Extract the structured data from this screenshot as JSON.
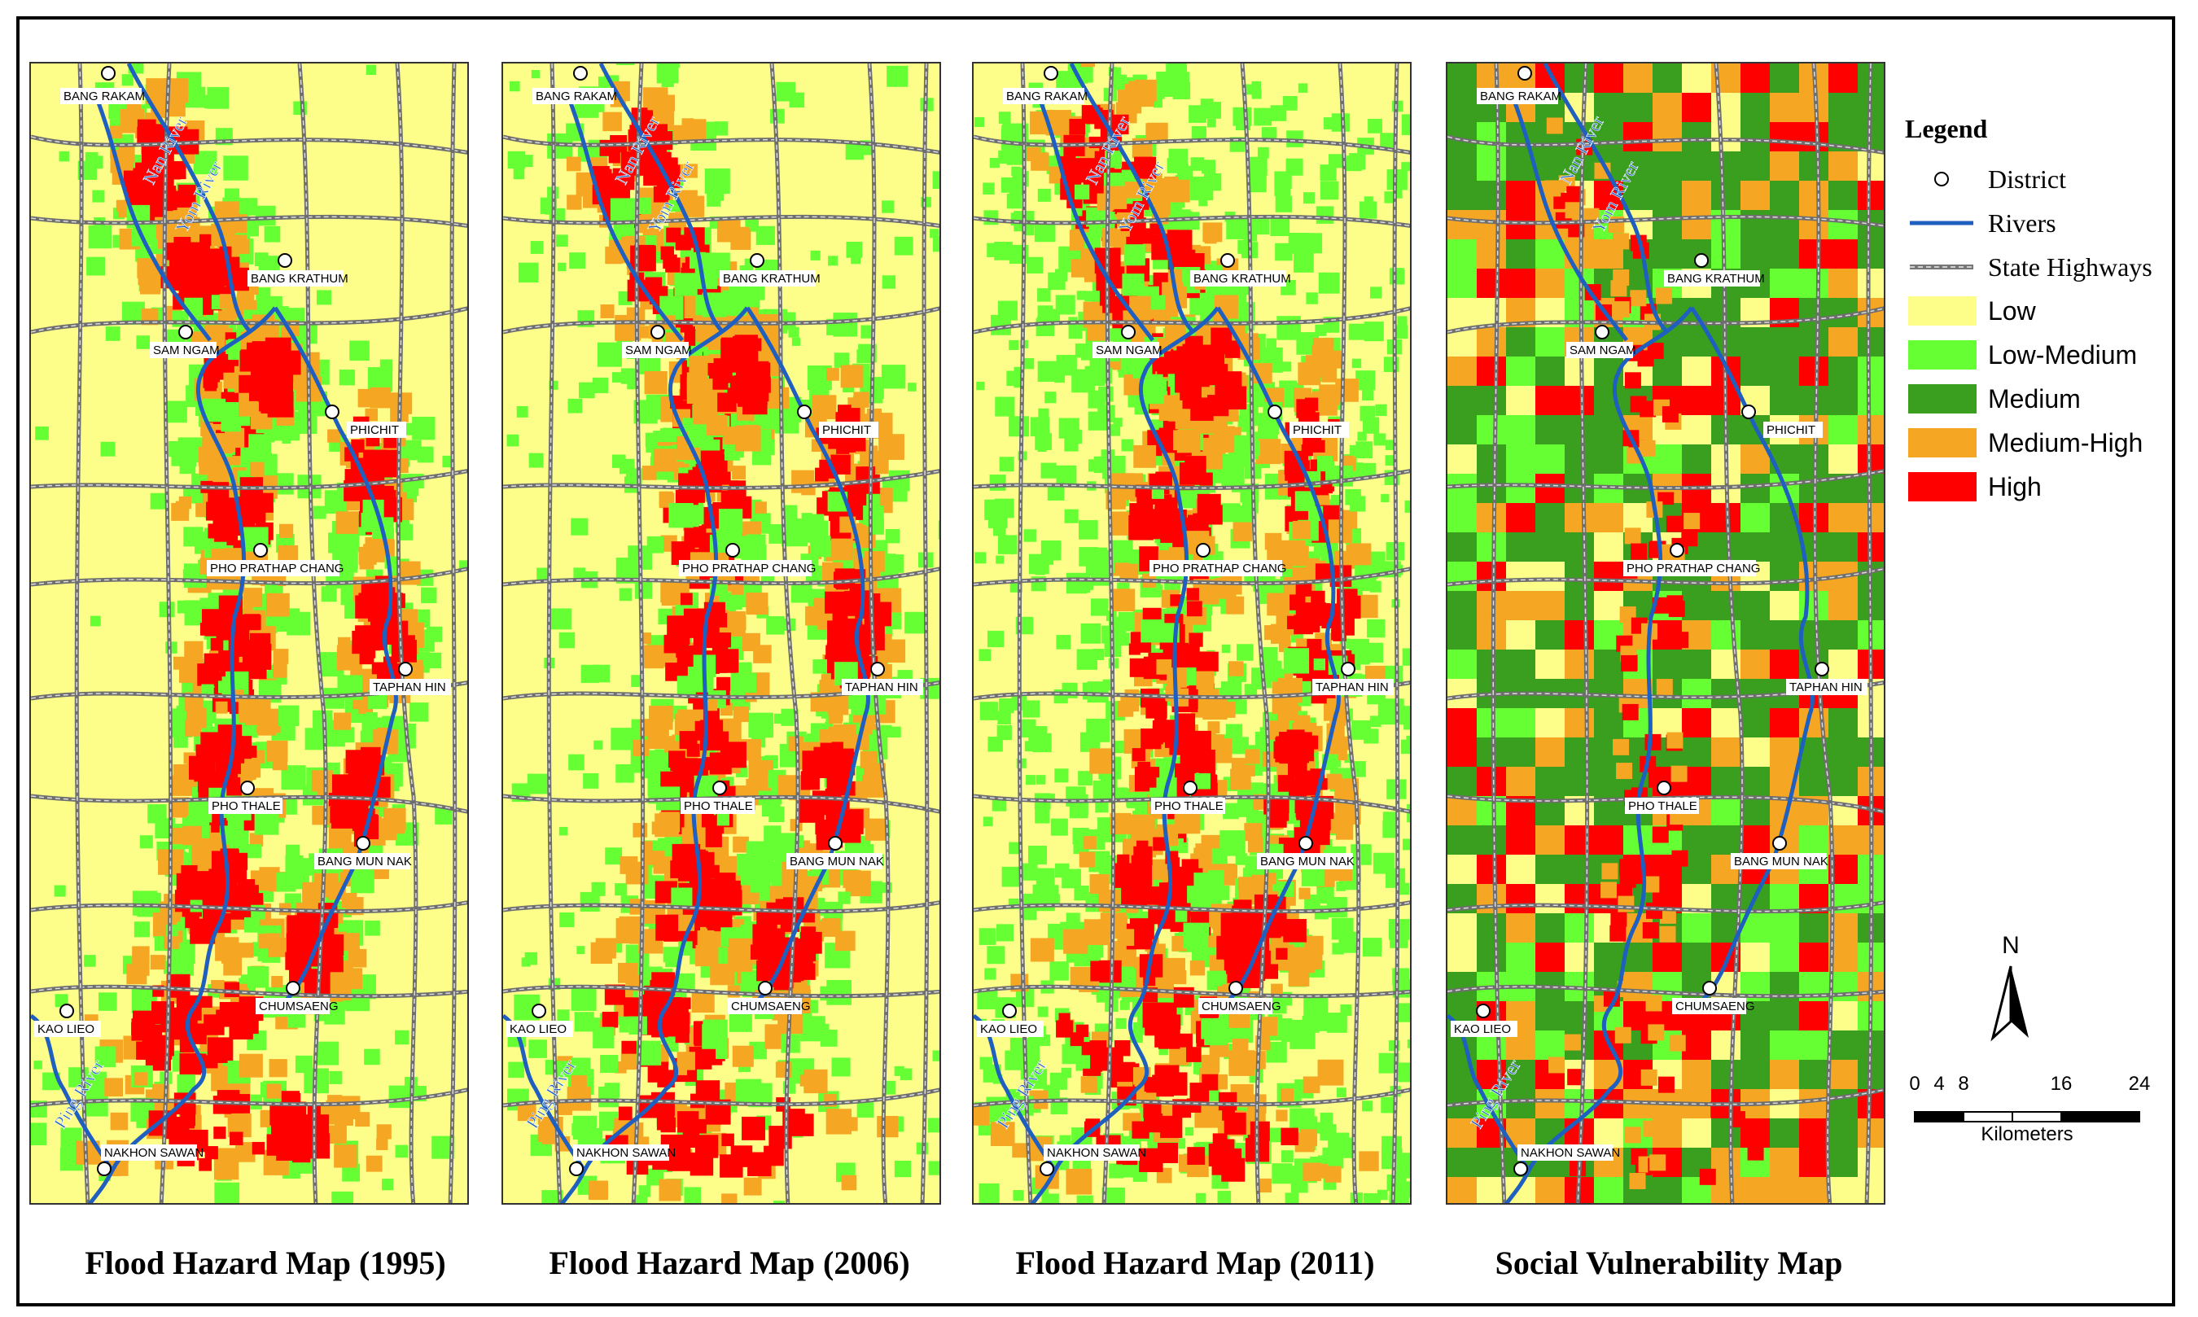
{
  "maps": [
    {
      "caption": "Flood Hazard Map (1995)",
      "type": "flood-1995"
    },
    {
      "caption": "Flood Hazard Map (2006)",
      "type": "flood-2006"
    },
    {
      "caption": "Flood Hazard Map (2011)",
      "type": "flood-2011"
    },
    {
      "caption": "Social Vulnerability Map",
      "type": "vulnerability"
    }
  ],
  "districts": [
    {
      "name": "BANG RAKAM"
    },
    {
      "name": "BANG KRATHUM"
    },
    {
      "name": "SAM NGAM"
    },
    {
      "name": "PHICHIT"
    },
    {
      "name": "PHO PRATHAP CHANG"
    },
    {
      "name": "TAPHAN HIN"
    },
    {
      "name": "PHO THALE"
    },
    {
      "name": "BANG MUN NAK"
    },
    {
      "name": "CHUMSAENG"
    },
    {
      "name": "KAO LIEO"
    },
    {
      "name": "NAKHON SAWAN"
    }
  ],
  "rivers": [
    "Nan River",
    "Yom River",
    "Ping River"
  ],
  "legend": {
    "title": "Legend",
    "items": [
      {
        "label": "District",
        "symbol": "district-circle"
      },
      {
        "label": "Rivers",
        "symbol": "river-line",
        "color": "#1f5fbf"
      },
      {
        "label": "State Highways",
        "symbol": "highway-line",
        "color": "#777777"
      },
      {
        "label": "Low",
        "symbol": "swatch",
        "color": "#fdfd8a"
      },
      {
        "label": "Low-Medium",
        "symbol": "swatch",
        "color": "#66ff33"
      },
      {
        "label": "Medium",
        "symbol": "swatch",
        "color": "#3a9e1e"
      },
      {
        "label": "Medium-High",
        "symbol": "swatch",
        "color": "#f5a623"
      },
      {
        "label": "High",
        "symbol": "swatch",
        "color": "#ff0000"
      }
    ]
  },
  "north_arrow": {
    "label": "N"
  },
  "scale": {
    "ticks": [
      "0",
      "4",
      "8",
      "16",
      "24"
    ],
    "units": "Kilometers"
  }
}
